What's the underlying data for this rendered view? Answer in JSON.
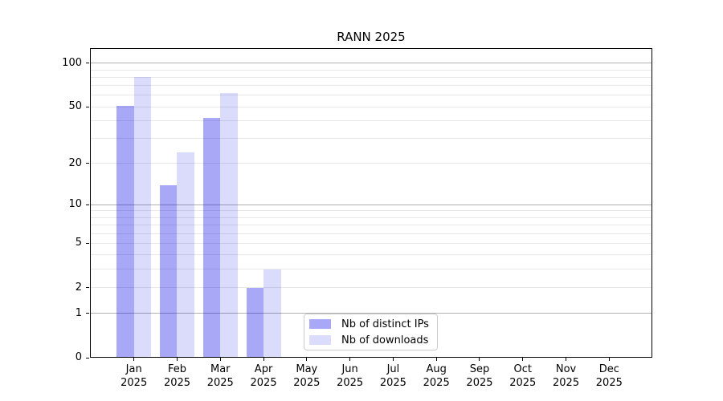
{
  "chart_data": {
    "type": "bar",
    "title": "RANN 2025",
    "categories": [
      "Jan",
      "Feb",
      "Mar",
      "Apr",
      "May",
      "Jun",
      "Jul",
      "Aug",
      "Sep",
      "Oct",
      "Nov",
      "Dec"
    ],
    "year_label": "2025",
    "series": [
      {
        "name": "Nb of distinct IPs",
        "color": "rgba(0,0,230,0.34)",
        "solid_color": "#a8a8f6",
        "values": [
          51,
          14,
          42,
          2,
          0,
          0,
          0,
          0,
          0,
          0,
          0,
          0
        ]
      },
      {
        "name": "Nb of downloads",
        "color": "rgba(0,0,230,0.14)",
        "solid_color": "#dbdbfb",
        "values": [
          80,
          24,
          62,
          3,
          0,
          0,
          0,
          0,
          0,
          0,
          0,
          0
        ]
      }
    ],
    "xlabel": "",
    "ylabel": "",
    "y_scale": "log1p",
    "ylim": [
      0,
      127
    ],
    "y_ticks": [
      0,
      1,
      2,
      5,
      10,
      20,
      50,
      100
    ],
    "grid": {
      "orientation": "horizontal",
      "major_values": [
        1,
        10,
        100
      ],
      "minor_values": [
        2,
        3,
        4,
        5,
        6,
        7,
        8,
        9,
        20,
        30,
        40,
        50,
        60,
        70,
        80,
        90
      ],
      "major_color": "#b0b0b0",
      "minor_color": "#e7e7e7"
    },
    "legend_position": "lower-center-inside",
    "spine_color": "#000000",
    "background_color": "#ffffff"
  }
}
